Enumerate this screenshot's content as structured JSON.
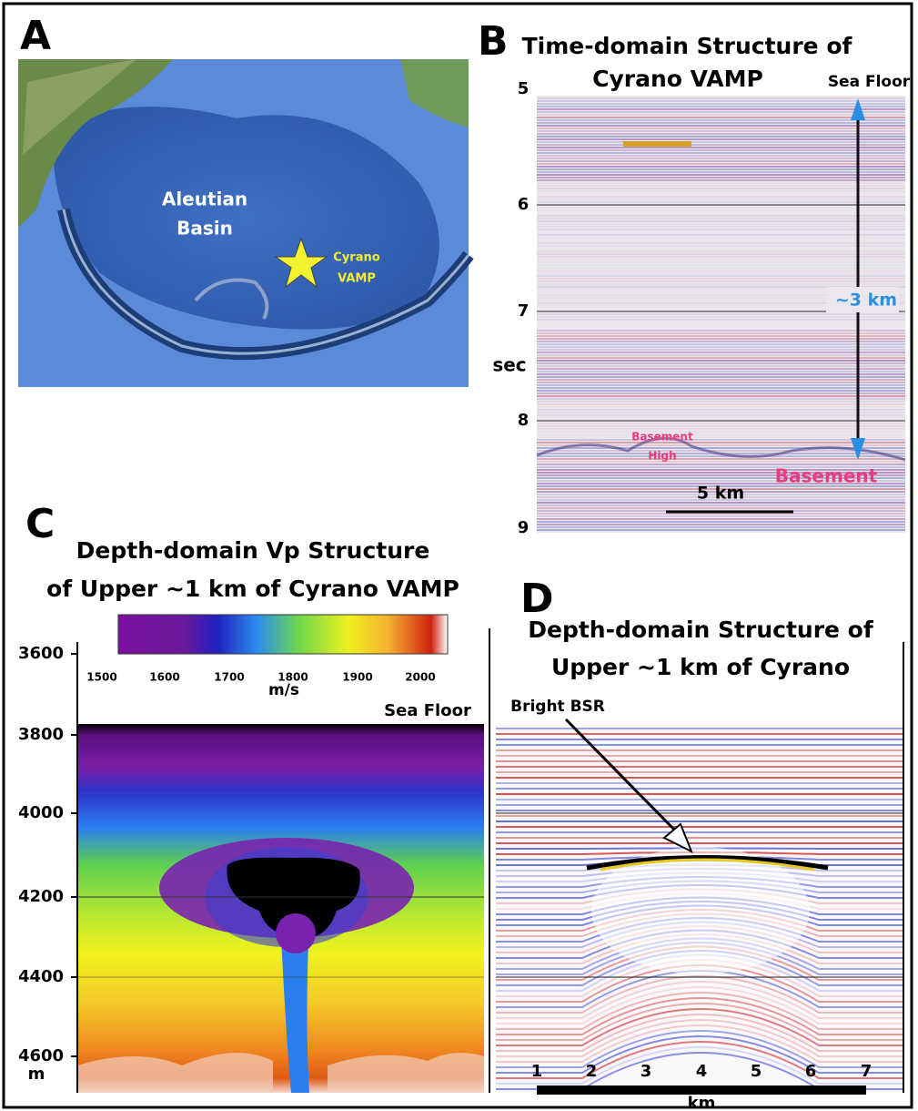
{
  "panel_a": {
    "label": "A",
    "basin": [
      "Aleutian",
      "Basin"
    ],
    "site": [
      "Cyrano",
      "VAMP"
    ]
  },
  "panel_b": {
    "label": "B",
    "title": [
      "Time-domain Structure of",
      "Cyrano VAMP"
    ],
    "sea_floor": "Sea Floor",
    "y_ticks": [
      5,
      6,
      7,
      8,
      9
    ],
    "y_unit": "sec",
    "thickness": "~3 km",
    "basement_high": [
      "Basement",
      "High"
    ],
    "basement": "Basement",
    "scale_bar": "5 km"
  },
  "panel_c": {
    "label": "C",
    "title": [
      "Depth-domain Vp Structure",
      "of Upper ~1 km of Cyrano VAMP"
    ],
    "colorbar_ticks": [
      1500,
      1600,
      1700,
      1800,
      1900,
      2000
    ],
    "colorbar_unit": "m/s",
    "sea_floor": "Sea Floor",
    "depth_ticks": [
      3600,
      3800,
      4000,
      4200,
      4400,
      4600
    ],
    "depth_unit": "m"
  },
  "panel_d": {
    "label": "D",
    "title": [
      "Depth-domain Structure of",
      "Upper ~1 km of Cyrano"
    ],
    "annotation": "Bright BSR",
    "km_ticks": [
      1,
      2,
      3,
      4,
      5,
      6,
      7
    ],
    "km_unit": "km"
  }
}
